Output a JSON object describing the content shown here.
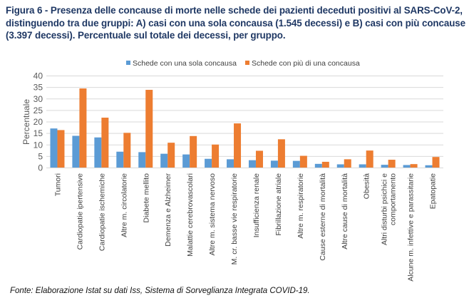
{
  "title": "Figura 6 - Presenza delle concause di morte nelle schede dei pazienti deceduti positivi al SARS-CoV-2, distinguendo tra due gruppi: A) casi con una sola concausa (1.545 decessi) e B) casi con più concause (3.397 decessi). Percentuale sul totale dei decessi, per gruppo.",
  "source": "Fonte: Elaborazione Istat su dati Iss, Sistema di Sorveglianza Integrata COVID-19.",
  "chart_data": {
    "type": "bar",
    "title": "",
    "xlabel": "",
    "ylabel": "Percentuale",
    "ylim": [
      0,
      40
    ],
    "yticks": [
      0,
      5,
      10,
      15,
      20,
      25,
      30,
      35,
      40
    ],
    "grid": true,
    "legend_position": "top",
    "categories": [
      "Tumori",
      "Cardiopatie ipertensive",
      "Cardiopatie ischemiche",
      "Altre m. circolatorie",
      "Diabete mellito",
      "Demenza e Alzheimer",
      "Malattie cerebrovascolari",
      "Altre m. sistema nervoso",
      "M. cr. basse vie respiratorie",
      "Insufficienza renale",
      "Fibrillazione atriale",
      "Altre m. respiratorie",
      "Cause esterne di mortalità",
      "Altre cause di mortalità",
      "Obesità",
      "Altri disturbi psichici e|comportamento",
      "Alcune m. infettive e parassitarie",
      "Epatopatie"
    ],
    "series": [
      {
        "name": "Schede con una sola concausa",
        "color": "#5b9bd5",
        "values": [
          17.0,
          13.8,
          13.1,
          6.9,
          6.7,
          6.0,
          5.7,
          3.8,
          3.6,
          3.2,
          3.0,
          2.9,
          1.6,
          1.4,
          1.4,
          1.2,
          1.1,
          1.0
        ]
      },
      {
        "name": "Schede con più di una concausa",
        "color": "#ed7d31",
        "values": [
          16.3,
          34.4,
          21.7,
          15.1,
          33.8,
          10.8,
          13.7,
          10.0,
          19.2,
          7.3,
          12.3,
          5.1,
          2.5,
          3.6,
          7.4,
          3.4,
          1.5,
          4.6
        ]
      }
    ]
  }
}
